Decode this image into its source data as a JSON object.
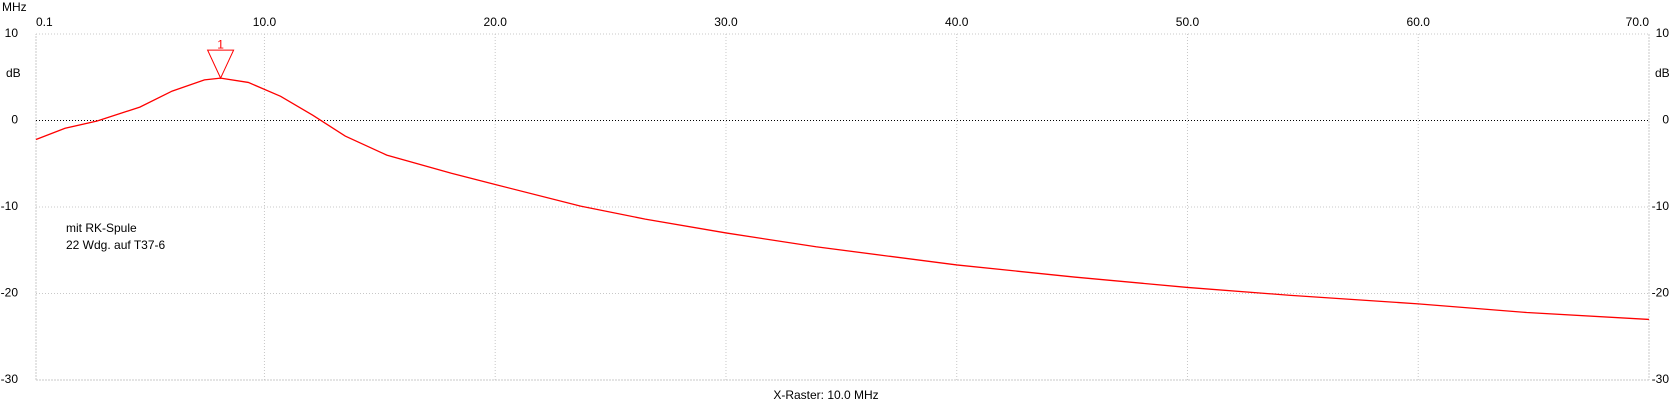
{
  "chart_data": {
    "type": "line",
    "x_unit": "MHz",
    "y_unit": "dB",
    "footer": "X-Raster: 10.0 MHz",
    "annotation": [
      "mit RK-Spule",
      "22 Wdg. auf T37-6"
    ],
    "xlim": [
      0.1,
      70
    ],
    "xticks": [
      0.1,
      {
        "value": 10,
        "label": "10.0"
      },
      {
        "value": 20,
        "label": "20.0"
      },
      {
        "value": 30,
        "label": "30.0"
      },
      {
        "value": 40,
        "label": "40.0"
      },
      {
        "value": 50,
        "label": "50.0"
      },
      {
        "value": 60,
        "label": "60.0"
      },
      {
        "value": 70,
        "label": "70.0"
      }
    ],
    "ylim": [
      -30,
      10
    ],
    "yticks": [
      10,
      0,
      -10,
      -20,
      -30
    ],
    "grid": true,
    "markers": [
      {
        "label": "1",
        "x": 8.1,
        "y": 4.9
      }
    ],
    "series": [
      {
        "color": "#ff0000",
        "x": [
          0.1,
          1.36,
          2.75,
          4.6,
          6.0,
          7.4,
          8.1,
          9.3,
          10.7,
          12.1,
          13.5,
          15.3,
          18.1,
          20.0,
          23.7,
          26.5,
          30.0,
          33.9,
          40.0,
          45.1,
          50.0,
          54.4,
          60.0,
          64.7,
          70.0
        ],
        "values": [
          -2.2,
          -0.9,
          -0.06,
          1.55,
          3.4,
          4.7,
          4.9,
          4.4,
          2.8,
          0.6,
          -1.8,
          -4.0,
          -6.1,
          -7.4,
          -9.9,
          -11.4,
          -13.0,
          -14.6,
          -16.7,
          -18.1,
          -19.3,
          -20.2,
          -21.2,
          -22.2,
          -23.0
        ]
      }
    ]
  }
}
